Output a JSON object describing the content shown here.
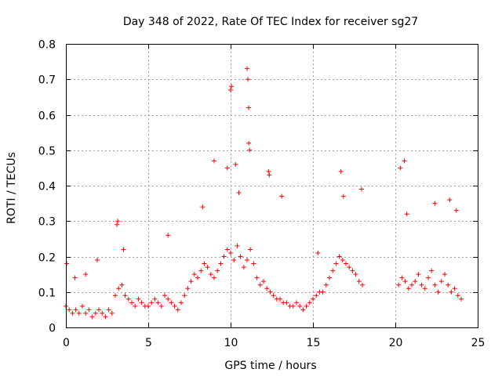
{
  "chart_data": {
    "type": "scatter",
    "title": "Day 348 of 2022, Rate Of TEC Index for receiver sg27",
    "xlabel": "GPS time / hours",
    "ylabel": "ROTI / TECUs",
    "xlim": [
      0,
      25
    ],
    "ylim": [
      0,
      0.8
    ],
    "xticks": [
      0,
      5,
      10,
      15,
      20,
      25
    ],
    "xtick_labels": [
      "0",
      "5",
      "10",
      "15",
      "20",
      "25"
    ],
    "yticks": [
      0,
      0.1,
      0.2,
      0.3,
      0.4,
      0.5,
      0.6,
      0.7,
      0.8
    ],
    "ytick_labels": [
      "0",
      "0.1",
      "0.2",
      "0.3",
      "0.4",
      "0.5",
      "0.6",
      "0.7",
      "0.8"
    ],
    "grid": true,
    "marker": "+",
    "color": "#ff0000",
    "data_gap_hours": [
      18.1,
      20.0
    ],
    "series": [
      {
        "name": "ROTI",
        "x": [
          0.0,
          0.2,
          0.4,
          0.6,
          0.8,
          1.0,
          1.2,
          1.4,
          1.6,
          1.8,
          2.0,
          2.2,
          2.4,
          2.6,
          2.8,
          3.0,
          3.2,
          3.4,
          3.6,
          3.8,
          4.0,
          4.2,
          4.4,
          4.6,
          4.8,
          5.0,
          5.2,
          5.4,
          5.6,
          5.8,
          6.0,
          6.2,
          6.4,
          6.6,
          6.8,
          7.0,
          7.2,
          7.4,
          7.6,
          7.8,
          8.0,
          8.2,
          8.4,
          8.6,
          8.8,
          9.0,
          9.2,
          9.4,
          9.6,
          9.8,
          10.0,
          10.2,
          10.4,
          10.6,
          10.8,
          11.0,
          11.2,
          11.4,
          11.6,
          11.8,
          12.0,
          12.2,
          12.4,
          12.6,
          12.8,
          13.0,
          13.2,
          13.4,
          13.6,
          13.8,
          14.0,
          14.2,
          14.4,
          14.6,
          14.8,
          15.0,
          15.2,
          15.4,
          15.6,
          15.8,
          16.0,
          16.2,
          16.4,
          16.6,
          16.8,
          17.0,
          17.2,
          17.4,
          17.6,
          17.8,
          18.0,
          20.2,
          20.4,
          20.6,
          20.8,
          21.0,
          21.2,
          21.4,
          21.6,
          21.8,
          22.0,
          22.2,
          22.4,
          22.6,
          22.8,
          23.0,
          23.2,
          23.4,
          23.6,
          23.8,
          24.0,
          0.05,
          0.55,
          1.2,
          1.9,
          3.1,
          3.15,
          3.5,
          6.2,
          8.3,
          9.0,
          9.8,
          10.0,
          10.05,
          10.3,
          10.5,
          11.0,
          11.05,
          11.1,
          11.1,
          11.15,
          12.3,
          12.35,
          13.1,
          15.3,
          16.7,
          16.85,
          17.95,
          20.3,
          20.55,
          20.7,
          22.4,
          23.3,
          23.7
        ],
        "y": [
          0.06,
          0.05,
          0.04,
          0.05,
          0.04,
          0.06,
          0.04,
          0.05,
          0.03,
          0.04,
          0.05,
          0.04,
          0.03,
          0.05,
          0.04,
          0.09,
          0.11,
          0.12,
          0.09,
          0.08,
          0.07,
          0.06,
          0.08,
          0.07,
          0.06,
          0.06,
          0.07,
          0.08,
          0.07,
          0.06,
          0.09,
          0.08,
          0.07,
          0.06,
          0.05,
          0.07,
          0.09,
          0.11,
          0.13,
          0.15,
          0.14,
          0.16,
          0.18,
          0.17,
          0.15,
          0.14,
          0.16,
          0.18,
          0.2,
          0.22,
          0.21,
          0.19,
          0.23,
          0.2,
          0.17,
          0.19,
          0.22,
          0.18,
          0.14,
          0.12,
          0.13,
          0.11,
          0.1,
          0.09,
          0.08,
          0.08,
          0.07,
          0.07,
          0.06,
          0.06,
          0.07,
          0.06,
          0.05,
          0.06,
          0.07,
          0.08,
          0.09,
          0.1,
          0.1,
          0.12,
          0.14,
          0.16,
          0.18,
          0.2,
          0.19,
          0.18,
          0.17,
          0.16,
          0.15,
          0.13,
          0.12,
          0.12,
          0.14,
          0.13,
          0.11,
          0.12,
          0.13,
          0.15,
          0.12,
          0.11,
          0.14,
          0.16,
          0.12,
          0.1,
          0.13,
          0.15,
          0.12,
          0.1,
          0.11,
          0.09,
          0.08,
          0.18,
          0.14,
          0.15,
          0.19,
          0.29,
          0.3,
          0.22,
          0.26,
          0.34,
          0.47,
          0.45,
          0.67,
          0.68,
          0.46,
          0.38,
          0.73,
          0.7,
          0.62,
          0.52,
          0.5,
          0.44,
          0.43,
          0.37,
          0.21,
          0.44,
          0.37,
          0.39,
          0.45,
          0.47,
          0.32,
          0.35,
          0.36,
          0.33
        ]
      }
    ]
  }
}
